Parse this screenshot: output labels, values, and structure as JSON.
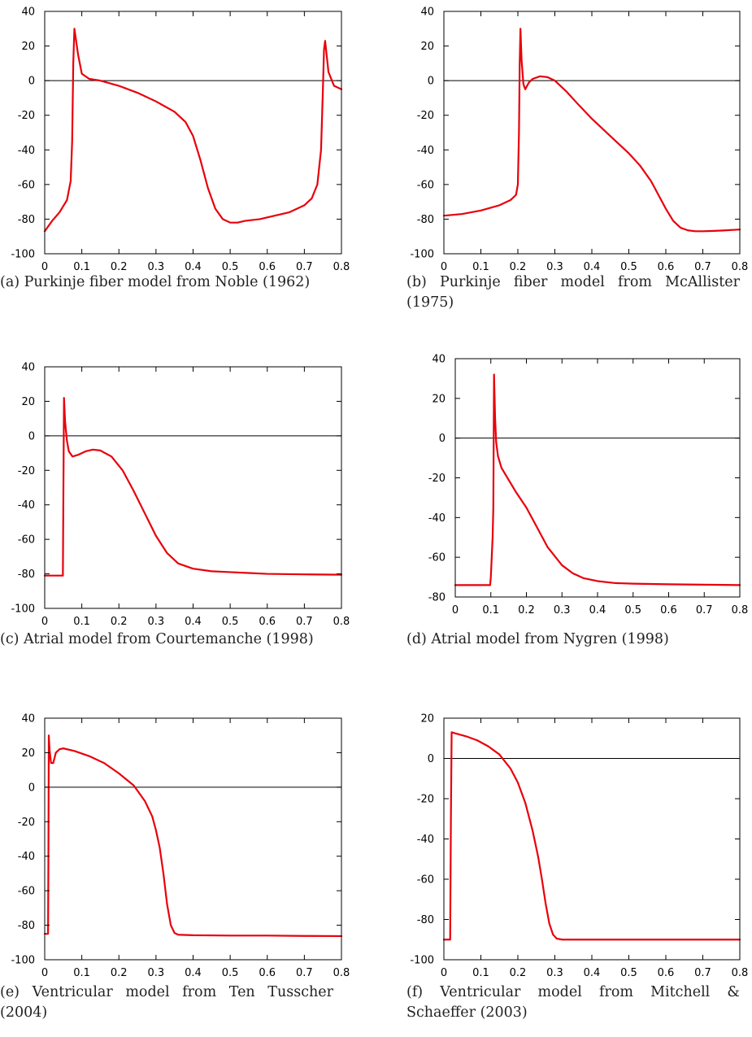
{
  "figure": {
    "panels": [
      {
        "caption": "(a) Purkinje fiber model from Noble (1962)",
        "chart_data": {
          "type": "line",
          "title": "",
          "xlabel": "",
          "ylabel": "",
          "xlim": [
            0,
            0.8
          ],
          "ylim": [
            -100,
            40
          ],
          "xticks": [
            "0",
            "0.1",
            "0.2",
            "0.3",
            "0.4",
            "0.5",
            "0.6",
            "0.7",
            "0.8"
          ],
          "yticks": [
            "-100",
            "-80",
            "-60",
            "-40",
            "-20",
            "0",
            "20",
            "40"
          ],
          "zero_line": true,
          "grid": false,
          "line_color": "#e8000b",
          "series": [
            {
              "x": [
                0,
                0.02,
                0.04,
                0.06,
                0.07,
                0.074,
                0.077,
                0.08,
                0.09,
                0.1,
                0.12,
                0.15,
                0.2,
                0.25,
                0.3,
                0.35,
                0.38,
                0.4,
                0.42,
                0.44,
                0.46,
                0.48,
                0.5,
                0.52,
                0.54,
                0.58,
                0.62,
                0.66,
                0.7,
                0.72,
                0.735,
                0.745,
                0.75,
                0.753,
                0.756,
                0.765,
                0.78,
                0.8
              ],
              "y": [
                -87,
                -81,
                -76,
                -69,
                -58,
                -35,
                10,
                30,
                15,
                4,
                1,
                0,
                -3,
                -7,
                -12,
                -18,
                -24,
                -32,
                -46,
                -62,
                -74,
                -80,
                -82,
                -82,
                -81,
                -80,
                -78,
                -76,
                -72,
                -68,
                -60,
                -40,
                -5,
                18,
                23,
                5,
                -3,
                -5
              ]
            }
          ]
        }
      },
      {
        "caption": "(b) Purkinje fiber model from McAllister (1975)",
        "caption_break": "(b) Purkinje fiber model from McAllis- ter (1975)",
        "chart_data": {
          "type": "line",
          "title": "",
          "xlabel": "",
          "ylabel": "",
          "xlim": [
            0,
            0.8
          ],
          "ylim": [
            -100,
            40
          ],
          "xticks": [
            "0",
            "0.1",
            "0.2",
            "0.3",
            "0.4",
            "0.5",
            "0.6",
            "0.7",
            "0.8"
          ],
          "yticks": [
            "-100",
            "-80",
            "-60",
            "-40",
            "-20",
            "0",
            "20",
            "40"
          ],
          "zero_line": true,
          "grid": false,
          "line_color": "#e8000b",
          "series": [
            {
              "x": [
                0,
                0.05,
                0.1,
                0.15,
                0.18,
                0.195,
                0.2,
                0.203,
                0.205,
                0.207,
                0.21,
                0.215,
                0.22,
                0.23,
                0.24,
                0.26,
                0.28,
                0.3,
                0.33,
                0.36,
                0.4,
                0.45,
                0.5,
                0.53,
                0.56,
                0.58,
                0.6,
                0.62,
                0.64,
                0.66,
                0.68,
                0.7,
                0.73,
                0.76,
                0.8
              ],
              "y": [
                -78,
                -77,
                -75,
                -72,
                -69,
                -66,
                -60,
                -30,
                10,
                30,
                12,
                -2,
                -5,
                -1,
                1,
                2.5,
                2,
                0,
                -6,
                -13,
                -22,
                -32,
                -42,
                -49,
                -58,
                -66,
                -74,
                -81,
                -85,
                -86.5,
                -87,
                -87,
                -86.8,
                -86.5,
                -86
              ]
            }
          ]
        }
      },
      {
        "caption": "(c) Atrial model from Courtemanche (1998)",
        "chart_data": {
          "type": "line",
          "title": "",
          "xlabel": "",
          "ylabel": "",
          "xlim": [
            0,
            0.8
          ],
          "ylim": [
            -100,
            40
          ],
          "xticks": [
            "0",
            "0.1",
            "0.2",
            "0.3",
            "0.4",
            "0.5",
            "0.6",
            "0.7",
            "0.8"
          ],
          "yticks": [
            "-100",
            "-80",
            "-60",
            "-40",
            "-20",
            "0",
            "20",
            "40"
          ],
          "zero_line": true,
          "grid": false,
          "line_color": "#e8000b",
          "series": [
            {
              "x": [
                0,
                0.049,
                0.05,
                0.052,
                0.055,
                0.06,
                0.065,
                0.075,
                0.09,
                0.11,
                0.13,
                0.15,
                0.18,
                0.21,
                0.24,
                0.27,
                0.3,
                0.33,
                0.36,
                0.4,
                0.45,
                0.5,
                0.55,
                0.6,
                0.7,
                0.8
              ],
              "y": [
                -81,
                -81,
                -45,
                22,
                8,
                -3,
                -9,
                -12,
                -11,
                -9,
                -8,
                -8.5,
                -12,
                -20,
                -32,
                -45,
                -58,
                -68,
                -74,
                -77,
                -78.5,
                -79,
                -79.5,
                -80,
                -80.3,
                -80.5
              ]
            }
          ]
        }
      },
      {
        "caption": "(d) Atrial model from Nygren (1998)",
        "chart_data": {
          "type": "line",
          "title": "",
          "xlabel": "",
          "ylabel": "",
          "xlim": [
            0,
            0.8
          ],
          "ylim": [
            -80,
            40
          ],
          "xticks": [
            "0",
            "0.1",
            "0.2",
            "0.3",
            "0.4",
            "0.5",
            "0.6",
            "0.7",
            "0.8"
          ],
          "yticks": [
            "-80",
            "-60",
            "-40",
            "-20",
            "0",
            "20",
            "40"
          ],
          "zero_line": true,
          "grid": false,
          "line_color": "#e8000b",
          "series": [
            {
              "x": [
                0,
                0.05,
                0.098,
                0.1,
                0.105,
                0.107,
                0.109,
                0.112,
                0.115,
                0.12,
                0.13,
                0.15,
                0.17,
                0.2,
                0.23,
                0.26,
                0.3,
                0.33,
                0.36,
                0.4,
                0.45,
                0.5,
                0.6,
                0.7,
                0.8
              ],
              "y": [
                -74,
                -74,
                -74,
                -70,
                -50,
                -35,
                32,
                10,
                -2,
                -9,
                -15,
                -21,
                -27,
                -35,
                -45,
                -55,
                -64,
                -68,
                -70.5,
                -72,
                -73,
                -73.3,
                -73.6,
                -73.8,
                -74
              ]
            }
          ]
        }
      },
      {
        "caption": "(e) Ventricular model from Ten Tusscher (2004)",
        "caption_break": "(e) Ventricular model from Ten Tuss- cher (2004)",
        "chart_data": {
          "type": "line",
          "title": "",
          "xlabel": "",
          "ylabel": "",
          "xlim": [
            0,
            0.8
          ],
          "ylim": [
            -100,
            40
          ],
          "xticks": [
            "0",
            "0.1",
            "0.2",
            "0.3",
            "0.4",
            "0.5",
            "0.6",
            "0.7",
            "0.8"
          ],
          "yticks": [
            "-100",
            "-80",
            "-60",
            "-40",
            "-20",
            "0",
            "20",
            "40"
          ],
          "zero_line": true,
          "grid": false,
          "line_color": "#e8000b",
          "series": [
            {
              "x": [
                0,
                0.009,
                0.01,
                0.011,
                0.013,
                0.017,
                0.023,
                0.03,
                0.04,
                0.05,
                0.08,
                0.12,
                0.16,
                0.2,
                0.24,
                0.27,
                0.29,
                0.3,
                0.31,
                0.32,
                0.33,
                0.34,
                0.35,
                0.36,
                0.4,
                0.5,
                0.6,
                0.7,
                0.8
              ],
              "y": [
                -85,
                -85,
                -40,
                30,
                22,
                14,
                14,
                20,
                22,
                22.5,
                21,
                18,
                14,
                8,
                1,
                -8,
                -17,
                -25,
                -35,
                -50,
                -68,
                -80,
                -84.5,
                -85.5,
                -85.8,
                -86,
                -86,
                -86.2,
                -86.3
              ]
            }
          ]
        }
      },
      {
        "caption": "(f) Ventricular model from Mitchell & Schaeffer (2003)",
        "caption_break": "(f) Ventricular model from Mitchell & Schaeffer (2003)",
        "chart_data": {
          "type": "line",
          "title": "",
          "xlabel": "",
          "ylabel": "",
          "xlim": [
            0,
            0.8
          ],
          "ylim": [
            -100,
            20
          ],
          "xticks": [
            "0",
            "0.1",
            "0.2",
            "0.3",
            "0.4",
            "0.5",
            "0.6",
            "0.7",
            "0.8"
          ],
          "yticks": [
            "-100",
            "-80",
            "-60",
            "-40",
            "-20",
            "0",
            "20"
          ],
          "zero_line": true,
          "grid": false,
          "line_color": "#e8000b",
          "series": [
            {
              "x": [
                0,
                0.017,
                0.019,
                0.021,
                0.03,
                0.06,
                0.09,
                0.12,
                0.15,
                0.18,
                0.2,
                0.22,
                0.24,
                0.255,
                0.265,
                0.275,
                0.285,
                0.295,
                0.305,
                0.32,
                0.4,
                0.5,
                0.6,
                0.7,
                0.8
              ],
              "y": [
                -90,
                -90,
                -30,
                13,
                12.5,
                11,
                9,
                6,
                2,
                -5,
                -12,
                -22,
                -36,
                -49,
                -60,
                -72,
                -82,
                -87.5,
                -89.5,
                -90,
                -90,
                -90,
                -90,
                -90,
                -90
              ]
            }
          ]
        }
      }
    ]
  }
}
